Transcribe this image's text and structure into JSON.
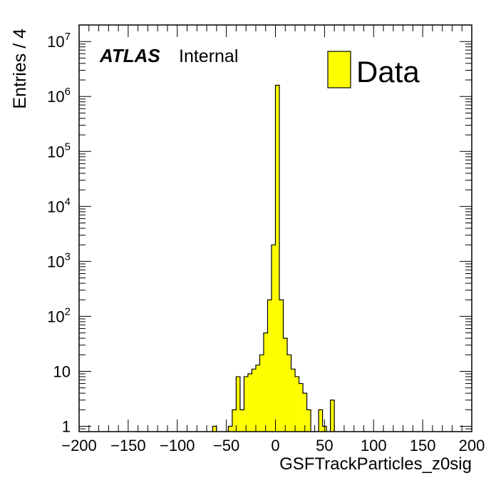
{
  "chart_data": {
    "type": "bar",
    "histogram": true,
    "log_y": true,
    "grid": false,
    "xlabel": "GSFTrackParticles_z0sig",
    "ylabel": "Entries / 4",
    "xlim": [
      -200,
      200
    ],
    "ylim": [
      0.8,
      20000000
    ],
    "bin_width": 4,
    "x_ticks": [
      "−200",
      "−150",
      "−100",
      "−50",
      "0",
      "50",
      "100",
      "150",
      "200"
    ],
    "x_tick_values": [
      -200,
      -150,
      -100,
      -50,
      0,
      50,
      100,
      150,
      200
    ],
    "y_ticks": [
      {
        "value": 1,
        "base": "1",
        "exp": ""
      },
      {
        "value": 10,
        "base": "10",
        "exp": ""
      },
      {
        "value": 100,
        "base": "10",
        "exp": "2"
      },
      {
        "value": 1000,
        "base": "10",
        "exp": "3"
      },
      {
        "value": 10000,
        "base": "10",
        "exp": "4"
      },
      {
        "value": 100000,
        "base": "10",
        "exp": "5"
      },
      {
        "value": 1000000,
        "base": "10",
        "exp": "6"
      },
      {
        "value": 10000000,
        "base": "10",
        "exp": "7"
      }
    ],
    "fill_color": "#ffff00",
    "line_color": "#000000",
    "legend": {
      "label": "Data",
      "position": "top-right"
    },
    "label_atlas": "ATLAS",
    "label_status": "Internal",
    "series": [
      {
        "name": "Data",
        "bins": [
          {
            "x0": -64,
            "x1": -60,
            "value": 1
          },
          {
            "x0": -48,
            "x1": -44,
            "value": 1
          },
          {
            "x0": -44,
            "x1": -40,
            "value": 2
          },
          {
            "x0": -40,
            "x1": -36,
            "value": 8
          },
          {
            "x0": -36,
            "x1": -32,
            "value": 2
          },
          {
            "x0": -32,
            "x1": -28,
            "value": 8
          },
          {
            "x0": -28,
            "x1": -24,
            "value": 9
          },
          {
            "x0": -24,
            "x1": -20,
            "value": 11
          },
          {
            "x0": -20,
            "x1": -16,
            "value": 13
          },
          {
            "x0": -16,
            "x1": -12,
            "value": 20
          },
          {
            "x0": -12,
            "x1": -8,
            "value": 50
          },
          {
            "x0": -8,
            "x1": -4,
            "value": 200
          },
          {
            "x0": -4,
            "x1": 0,
            "value": 2000
          },
          {
            "x0": 0,
            "x1": 4,
            "value": 1600000
          },
          {
            "x0": 4,
            "x1": 8,
            "value": 200
          },
          {
            "x0": 8,
            "x1": 12,
            "value": 40
          },
          {
            "x0": 12,
            "x1": 16,
            "value": 20
          },
          {
            "x0": 16,
            "x1": 20,
            "value": 11
          },
          {
            "x0": 20,
            "x1": 24,
            "value": 8
          },
          {
            "x0": 24,
            "x1": 28,
            "value": 6
          },
          {
            "x0": 28,
            "x1": 32,
            "value": 4
          },
          {
            "x0": 32,
            "x1": 36,
            "value": 2
          },
          {
            "x0": 44,
            "x1": 48,
            "value": 2
          },
          {
            "x0": 48,
            "x1": 52,
            "value": 1
          },
          {
            "x0": 56,
            "x1": 60,
            "value": 3
          }
        ]
      }
    ]
  }
}
